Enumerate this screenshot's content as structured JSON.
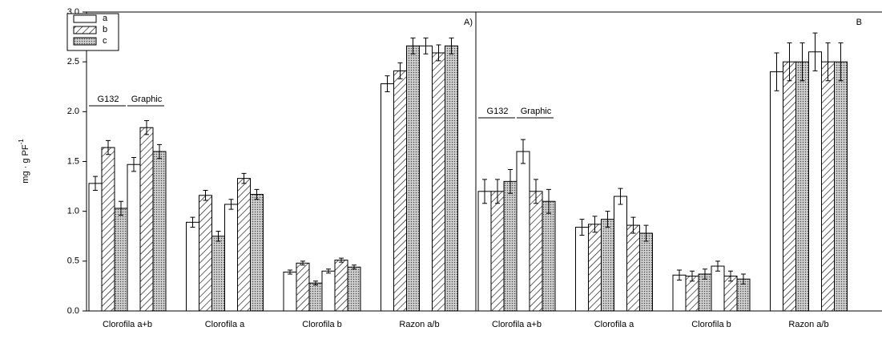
{
  "chart_data": [
    {
      "type": "bar",
      "label": "A)",
      "y_label": "mg · g PF",
      "y_label_sup": "-1",
      "categories": [
        "Clorofila a+b",
        "Clorofila a",
        "Clorofila b",
        "Razon a/b"
      ],
      "groups": [
        "G132",
        "Graphic"
      ],
      "ylim": [
        0,
        3
      ],
      "yticks": [
        {
          "value": 0,
          "label": "0.0"
        },
        0.5,
        {
          "value": 1,
          "label": "1.0"
        },
        1.5,
        {
          "value": 2,
          "label": "2.0"
        },
        2.5,
        {
          "value": 3,
          "label": "3.0"
        }
      ],
      "series": [
        {
          "name": "a",
          "fill": "white",
          "values": [
            [
              1.28,
              0.89,
              0.39,
              2.28
            ],
            [
              1.47,
              1.07,
              0.4,
              2.66
            ]
          ],
          "errors": [
            [
              0.07,
              0.05,
              0.02,
              0.08
            ],
            [
              0.07,
              0.05,
              0.02,
              0.08
            ]
          ]
        },
        {
          "name": "b",
          "fill": "hatch",
          "values": [
            [
              1.64,
              1.16,
              0.48,
              2.41
            ],
            [
              1.84,
              1.33,
              0.51,
              2.59
            ]
          ],
          "errors": [
            [
              0.07,
              0.05,
              0.02,
              0.08
            ],
            [
              0.07,
              0.05,
              0.02,
              0.08
            ]
          ]
        },
        {
          "name": "c",
          "fill": "dots",
          "values": [
            [
              1.03,
              0.75,
              0.28,
              2.66
            ],
            [
              1.6,
              1.17,
              0.44,
              2.66
            ]
          ],
          "errors": [
            [
              0.07,
              0.05,
              0.02,
              0.08
            ],
            [
              0.07,
              0.05,
              0.02,
              0.08
            ]
          ]
        }
      ]
    },
    {
      "type": "bar",
      "label": "B",
      "categories": [
        "Clorofila a+b",
        "Clorofila a",
        "Clorofila b",
        "Razon a/b"
      ],
      "groups": [
        "G132",
        "Graphic"
      ],
      "ylim": [
        0,
        3
      ],
      "series": [
        {
          "fill": "white",
          "values": [
            [
              1.2,
              0.84,
              0.36,
              2.4
            ],
            [
              1.6,
              1.15,
              0.45,
              2.6
            ]
          ],
          "errors": [
            [
              0.12,
              0.08,
              0.05,
              0.19
            ],
            [
              0.12,
              0.08,
              0.05,
              0.19
            ]
          ]
        },
        {
          "fill": "hatch",
          "values": [
            [
              1.2,
              0.87,
              0.35,
              2.5
            ],
            [
              1.2,
              0.86,
              0.35,
              2.5
            ]
          ],
          "errors": [
            [
              0.12,
              0.08,
              0.05,
              0.19
            ],
            [
              0.12,
              0.08,
              0.05,
              0.19
            ]
          ]
        },
        {
          "fill": "dots",
          "values": [
            [
              1.3,
              0.92,
              0.37,
              2.5
            ],
            [
              1.1,
              0.78,
              0.32,
              2.5
            ]
          ],
          "errors": [
            [
              0.12,
              0.08,
              0.05,
              0.19
            ],
            [
              0.12,
              0.08,
              0.05,
              0.19
            ]
          ]
        }
      ]
    }
  ]
}
